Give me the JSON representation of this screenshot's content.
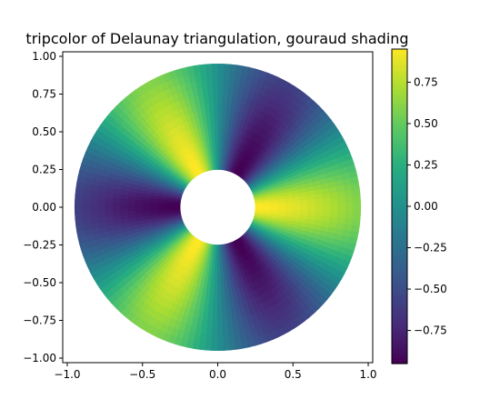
{
  "chart_data": {
    "type": "heatmap",
    "title": "tripcolor of Delaunay triangulation, gouraud shading",
    "xlabel": "",
    "ylabel": "",
    "xlim": [
      -1.03,
      1.03
    ],
    "ylim": [
      -1.03,
      1.03
    ],
    "x_ticks": [
      -1.0,
      -0.5,
      0.0,
      0.5,
      1.0
    ],
    "x_tick_labels": [
      "−1.0",
      "−0.5",
      "0.0",
      "0.5",
      "1.0"
    ],
    "y_ticks": [
      1.0,
      0.75,
      0.5,
      0.25,
      0.0,
      -0.25,
      -0.5,
      -0.75,
      -1.0
    ],
    "y_tick_labels": [
      "1.00",
      "0.75",
      "0.50",
      "0.25",
      "0.00",
      "−0.25",
      "−0.50",
      "−0.75",
      "−1.00"
    ],
    "grid": false,
    "annulus": {
      "inner_radius": 0.25,
      "outer_radius": 0.95,
      "n_angles": 36,
      "n_radii": 8
    },
    "colorbar": {
      "colormap": "viridis",
      "vmin": -0.95,
      "vmax": 0.95,
      "ticks": [
        0.75,
        0.5,
        0.25,
        0.0,
        -0.25,
        -0.5,
        -0.75
      ],
      "tick_labels": [
        "0.75",
        "0.50",
        "0.25",
        "0.00",
        "−0.25",
        "−0.50",
        "−0.75"
      ]
    }
  }
}
